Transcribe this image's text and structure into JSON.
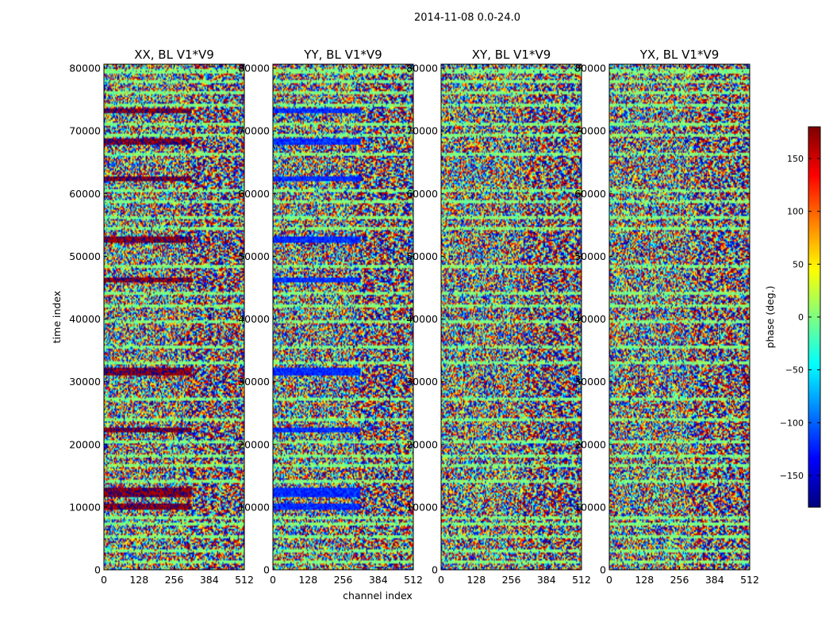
{
  "figure": {
    "suptitle": "2014-11-08 0.0-24.0"
  },
  "chart_data": {
    "type": "heatmap",
    "suptitle": "2014-11-08 0.0-24.0",
    "xlabel": "channel index",
    "ylabel": "time index",
    "xlim": [
      0,
      512
    ],
    "ylim": [
      0,
      80640
    ],
    "xticks": [
      0,
      128,
      256,
      384,
      512
    ],
    "yticks": [
      0,
      10000,
      20000,
      30000,
      40000,
      50000,
      60000,
      70000,
      80000
    ],
    "colormap": "jet",
    "colorbar": {
      "label": "phase (deg.)",
      "range": [
        -180,
        180
      ],
      "ticks": [
        -150,
        -100,
        -50,
        0,
        50,
        100,
        150
      ],
      "tick_labels": [
        "−150",
        "−100",
        "−50",
        "0",
        "50",
        "100",
        "150"
      ]
    },
    "panels": [
      {
        "title": "XX, BL V1*V9",
        "bias_phase": 175,
        "bands": [
          {
            "y0": 72800,
            "y1": 73500,
            "x1": 320
          },
          {
            "y0": 67800,
            "y1": 68700,
            "x1": 320
          },
          {
            "y0": 62000,
            "y1": 62700,
            "x1": 320
          },
          {
            "y0": 52200,
            "y1": 53100,
            "x1": 320
          },
          {
            "y0": 45800,
            "y1": 46500,
            "x1": 320
          },
          {
            "y0": 30900,
            "y1": 32300,
            "x1": 320
          },
          {
            "y0": 21900,
            "y1": 22600,
            "x1": 320
          },
          {
            "y0": 11500,
            "y1": 13200,
            "x1": 320
          },
          {
            "y0": 9600,
            "y1": 10700,
            "x1": 320
          }
        ]
      },
      {
        "title": "YY, BL V1*V9",
        "bias_phase": -120,
        "bands": [
          {
            "y0": 72800,
            "y1": 73500,
            "x1": 320
          },
          {
            "y0": 67800,
            "y1": 68700,
            "x1": 320
          },
          {
            "y0": 62000,
            "y1": 62700,
            "x1": 320
          },
          {
            "y0": 52200,
            "y1": 53100,
            "x1": 320
          },
          {
            "y0": 45800,
            "y1": 46500,
            "x1": 320
          },
          {
            "y0": 30900,
            "y1": 32300,
            "x1": 320
          },
          {
            "y0": 21900,
            "y1": 22600,
            "x1": 320
          },
          {
            "y0": 11500,
            "y1": 13200,
            "x1": 320
          },
          {
            "y0": 9600,
            "y1": 10700,
            "x1": 320
          }
        ]
      },
      {
        "title": "XY, BL V1*V9",
        "bias_phase": null,
        "bands": []
      },
      {
        "title": "YX, BL V1*V9",
        "bias_phase": null,
        "bands": []
      }
    ],
    "flag_rows": [
      79500,
      77800,
      76000,
      74200,
      71000,
      69400,
      66200,
      60500,
      58700,
      56200,
      54500,
      48300,
      44000,
      42200,
      39500,
      35600,
      33000,
      27300,
      24000,
      20300,
      18100,
      16600,
      14200,
      8400,
      7200,
      5300,
      3100,
      1300
    ]
  }
}
